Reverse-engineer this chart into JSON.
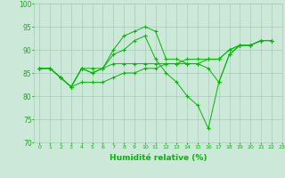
{
  "xlabel": "Humidité relative (%)",
  "xlim": [
    -0.5,
    22.5
  ],
  "ylim": [
    70,
    100
  ],
  "yticks": [
    70,
    75,
    80,
    85,
    90,
    95,
    100
  ],
  "xticks": [
    0,
    1,
    2,
    3,
    4,
    5,
    6,
    7,
    8,
    9,
    10,
    11,
    12,
    13,
    14,
    15,
    16,
    17,
    18,
    19,
    20,
    21,
    22,
    23
  ],
  "bg_color": "#cce8d8",
  "grid_color": "#aaccbb",
  "line_color": "#00bb00",
  "lines": [
    [
      86,
      86,
      84,
      82,
      86,
      85,
      86,
      90,
      93,
      94,
      95,
      94,
      88,
      88,
      87,
      87,
      86,
      83,
      89,
      91,
      91,
      92,
      92
    ],
    [
      86,
      86,
      84,
      82,
      86,
      85,
      86,
      89,
      90,
      92,
      93,
      88,
      85,
      83,
      80,
      78,
      73,
      83,
      89,
      91,
      91,
      92,
      92
    ],
    [
      86,
      86,
      84,
      82,
      86,
      86,
      86,
      87,
      87,
      87,
      87,
      87,
      87,
      87,
      88,
      88,
      88,
      88,
      90,
      91,
      91,
      92,
      92
    ],
    [
      86,
      86,
      84,
      82,
      83,
      83,
      83,
      84,
      85,
      85,
      86,
      86,
      87,
      87,
      87,
      87,
      88,
      88,
      90,
      91,
      91,
      92,
      92
    ]
  ]
}
